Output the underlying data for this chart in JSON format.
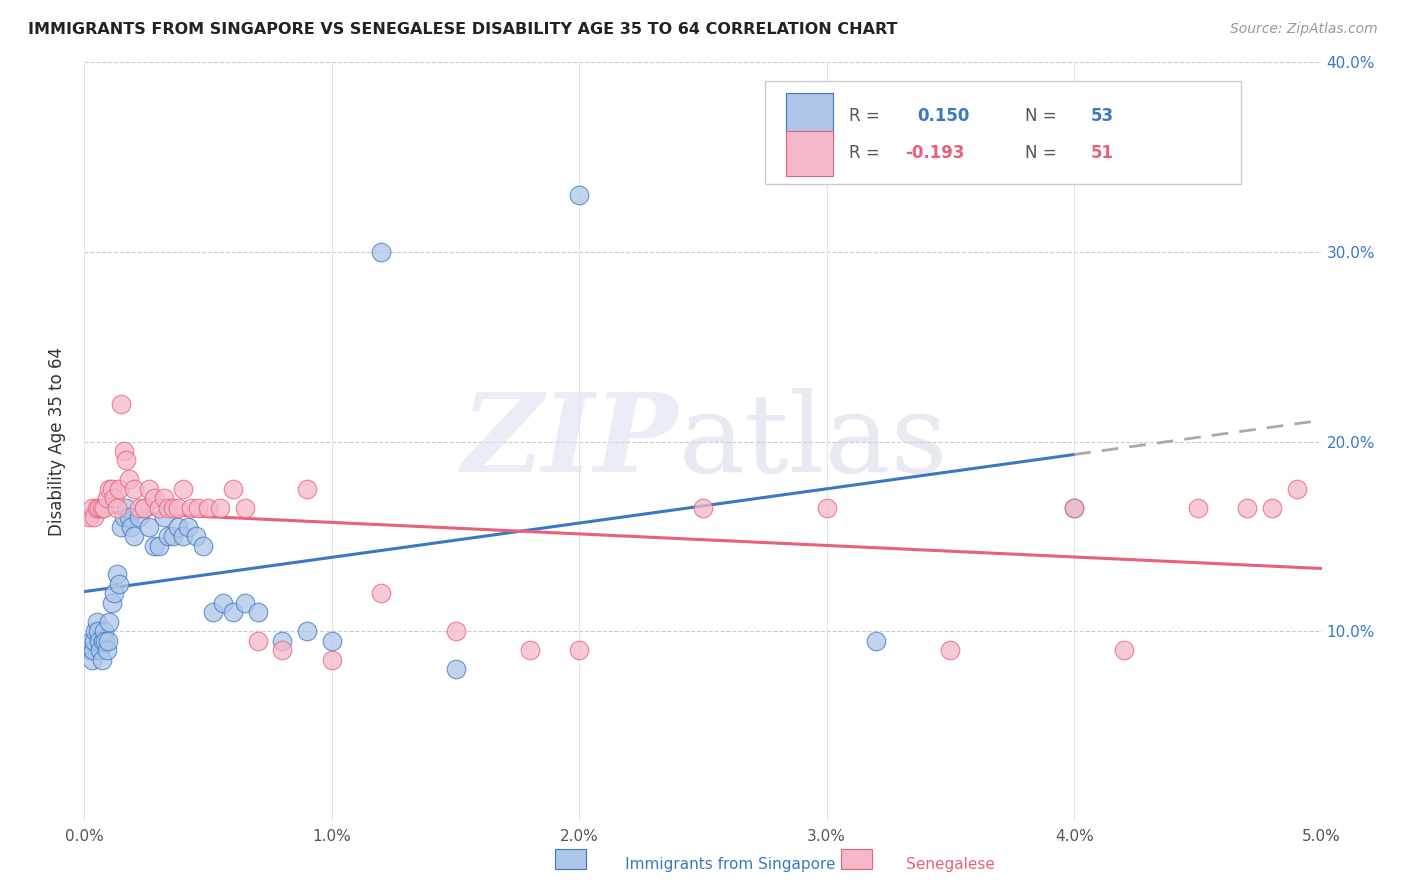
{
  "title": "IMMIGRANTS FROM SINGAPORE VS SENEGALESE DISABILITY AGE 35 TO 64 CORRELATION CHART",
  "source": "Source: ZipAtlas.com",
  "ylabel": "Disability Age 35 to 64",
  "x_min": 0.0,
  "x_max": 0.05,
  "y_min": 0.0,
  "y_max": 0.4,
  "x_ticks": [
    0.0,
    0.01,
    0.02,
    0.03,
    0.04,
    0.05
  ],
  "x_tick_labels": [
    "0.0%",
    "1.0%",
    "2.0%",
    "3.0%",
    "4.0%",
    "5.0%"
  ],
  "y_ticks": [
    0.0,
    0.1,
    0.2,
    0.3,
    0.4
  ],
  "y_tick_labels_right": [
    "",
    "10.0%",
    "20.0%",
    "30.0%",
    "40.0%"
  ],
  "singapore_color": "#aec6e8",
  "senegalese_color": "#f4b8c8",
  "singapore_line_color": "#3b78c4",
  "senegalese_line_color": "#e8607a",
  "dashed_line_color": "#aaaaaa",
  "sg_R": "0.150",
  "sg_N": "53",
  "sn_R": "-0.193",
  "sn_N": "51",
  "singapore_x": [
    0.0002,
    0.00025,
    0.0003,
    0.00035,
    0.0004,
    0.00045,
    0.0005,
    0.00055,
    0.0006,
    0.00065,
    0.0007,
    0.00075,
    0.0008,
    0.00085,
    0.0009,
    0.00095,
    0.001,
    0.0011,
    0.0012,
    0.0013,
    0.0014,
    0.0015,
    0.0016,
    0.0017,
    0.0018,
    0.0019,
    0.002,
    0.0022,
    0.0024,
    0.0026,
    0.0028,
    0.003,
    0.0032,
    0.0034,
    0.0036,
    0.0038,
    0.004,
    0.0042,
    0.0045,
    0.0048,
    0.0052,
    0.0056,
    0.006,
    0.0065,
    0.007,
    0.008,
    0.009,
    0.01,
    0.012,
    0.015,
    0.02,
    0.032,
    0.04
  ],
  "singapore_y": [
    0.09,
    0.095,
    0.085,
    0.09,
    0.095,
    0.1,
    0.105,
    0.1,
    0.095,
    0.09,
    0.085,
    0.095,
    0.1,
    0.095,
    0.09,
    0.095,
    0.105,
    0.115,
    0.12,
    0.13,
    0.125,
    0.155,
    0.16,
    0.165,
    0.16,
    0.155,
    0.15,
    0.16,
    0.165,
    0.155,
    0.145,
    0.145,
    0.16,
    0.15,
    0.15,
    0.155,
    0.15,
    0.155,
    0.15,
    0.145,
    0.11,
    0.115,
    0.11,
    0.115,
    0.11,
    0.095,
    0.1,
    0.095,
    0.3,
    0.08,
    0.33,
    0.095,
    0.165
  ],
  "senegalese_x": [
    0.0002,
    0.0003,
    0.0004,
    0.0005,
    0.0006,
    0.0007,
    0.0008,
    0.0009,
    0.001,
    0.0011,
    0.0012,
    0.0013,
    0.0014,
    0.0015,
    0.0016,
    0.0017,
    0.0018,
    0.002,
    0.0022,
    0.0024,
    0.0026,
    0.0028,
    0.003,
    0.0032,
    0.0034,
    0.0036,
    0.0038,
    0.004,
    0.0043,
    0.0046,
    0.005,
    0.0055,
    0.006,
    0.0065,
    0.007,
    0.008,
    0.009,
    0.01,
    0.012,
    0.015,
    0.018,
    0.02,
    0.025,
    0.03,
    0.035,
    0.04,
    0.042,
    0.045,
    0.047,
    0.048,
    0.049
  ],
  "senegalese_y": [
    0.16,
    0.165,
    0.16,
    0.165,
    0.165,
    0.165,
    0.165,
    0.17,
    0.175,
    0.175,
    0.17,
    0.165,
    0.175,
    0.22,
    0.195,
    0.19,
    0.18,
    0.175,
    0.165,
    0.165,
    0.175,
    0.17,
    0.165,
    0.17,
    0.165,
    0.165,
    0.165,
    0.175,
    0.165,
    0.165,
    0.165,
    0.165,
    0.175,
    0.165,
    0.095,
    0.09,
    0.175,
    0.085,
    0.12,
    0.1,
    0.09,
    0.09,
    0.165,
    0.165,
    0.09,
    0.165,
    0.09,
    0.165,
    0.165,
    0.165,
    0.175
  ]
}
